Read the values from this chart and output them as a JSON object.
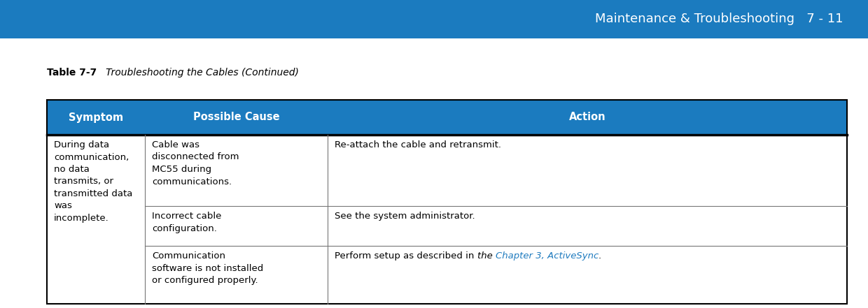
{
  "header_bg_color": "#1b7bbf",
  "header_text_color": "#ffffff",
  "body_bg_color": "#ffffff",
  "body_text_color": "#000000",
  "link_color": "#1f7bbf",
  "border_color": "#000000",
  "thin_line_color": "#777777",
  "top_bar_color": "#1b7bbf",
  "top_bar_text": "Maintenance & Troubleshooting   7 - 11",
  "table_title_bold": "Table 7-7",
  "table_title_italic": "   Troubleshooting the Cables (Continued)",
  "col_headers": [
    "Symptom",
    "Possible Cause",
    "Action"
  ],
  "symptom_text": "During data\ncommunication,\nno data\ntransmits, or\ntransmitted data\nwas\nincomplete.",
  "rows": [
    {
      "cause": "Cable was\ndisconnected from\nMC55 during\ncommunications.",
      "action_plain": "Re-attach the cable and retransmit.",
      "action_link": null
    },
    {
      "cause": "Incorrect cable\nconfiguration.",
      "action_plain": "See the system administrator.",
      "action_link": null
    },
    {
      "cause": "Communication\nsoftware is not installed\nor configured properly.",
      "action_plain": "Perform setup as described in ",
      "action_italic": "the ",
      "action_link": "Chapter 3, ActiveSync",
      "action_after": "."
    }
  ],
  "figsize": [
    12.4,
    4.41
  ],
  "dpi": 100
}
